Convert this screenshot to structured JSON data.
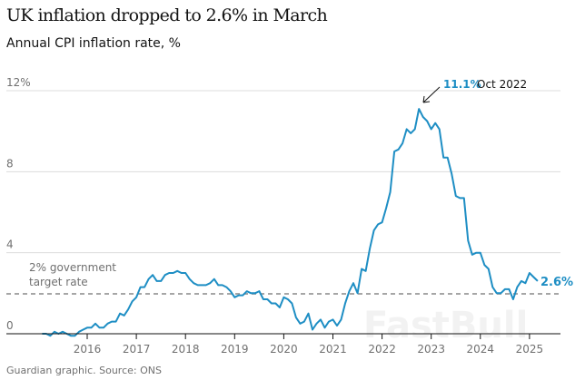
{
  "chart_data": {
    "type": "line",
    "title": "UK inflation dropped to 2.6% in March",
    "subtitle": "Annual CPI inflation rate, %",
    "source": "Guardian graphic. Source: ONS",
    "x_start": "2015-02",
    "x_frequency": "monthly",
    "x_ticks": [
      "2016",
      "2017",
      "2018",
      "2019",
      "2020",
      "2021",
      "2022",
      "2023",
      "2024",
      "2025"
    ],
    "y_ticks": [
      "0",
      "4",
      "8",
      "12%"
    ],
    "y_tick_values": [
      0,
      4,
      8,
      12
    ],
    "ylim": [
      0,
      12
    ],
    "grid": true,
    "line_color": "#1e8ec4",
    "values": [
      0.0,
      0.0,
      -0.1,
      0.1,
      0.0,
      0.1,
      0.0,
      -0.1,
      -0.1,
      0.1,
      0.2,
      0.3,
      0.3,
      0.5,
      0.3,
      0.3,
      0.5,
      0.6,
      0.6,
      1.0,
      0.9,
      1.2,
      1.6,
      1.8,
      2.3,
      2.3,
      2.7,
      2.9,
      2.6,
      2.6,
      2.9,
      3.0,
      3.0,
      3.1,
      3.0,
      3.0,
      2.7,
      2.5,
      2.4,
      2.4,
      2.4,
      2.5,
      2.7,
      2.4,
      2.4,
      2.3,
      2.1,
      1.8,
      1.9,
      1.9,
      2.1,
      2.0,
      2.0,
      2.1,
      1.7,
      1.7,
      1.5,
      1.5,
      1.3,
      1.8,
      1.7,
      1.5,
      0.8,
      0.5,
      0.6,
      1.0,
      0.2,
      0.5,
      0.7,
      0.3,
      0.6,
      0.7,
      0.4,
      0.7,
      1.5,
      2.1,
      2.5,
      2.0,
      3.2,
      3.1,
      4.2,
      5.1,
      5.4,
      5.5,
      6.2,
      7.0,
      9.0,
      9.1,
      9.4,
      10.1,
      9.9,
      10.1,
      11.1,
      10.7,
      10.5,
      10.1,
      10.4,
      10.1,
      8.7,
      8.7,
      7.9,
      6.8,
      6.7,
      6.7,
      4.6,
      3.9,
      4.0,
      4.0,
      3.4,
      3.2,
      2.3,
      2.0,
      2.0,
      2.2,
      2.2,
      1.7,
      2.3,
      2.6,
      2.5,
      3.0,
      2.8,
      2.6
    ],
    "reference_line": {
      "value": 2,
      "label_line1": "2% government",
      "label_line2": "target rate",
      "style": "dashed"
    },
    "annotations": {
      "peak": {
        "value_label": "11.1%",
        "date_label": "Oct 2022"
      },
      "last": {
        "value_label": "2.6%"
      }
    }
  },
  "watermark": "FastBull"
}
